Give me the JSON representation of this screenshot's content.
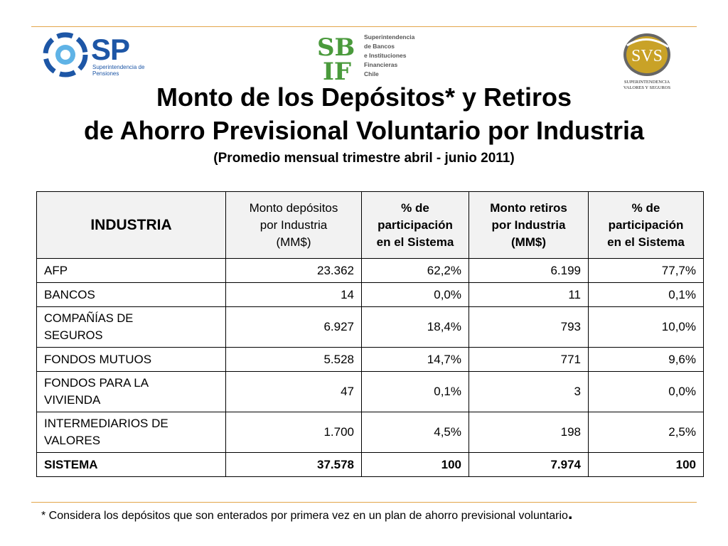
{
  "logos": {
    "sp": {
      "letters": "SP",
      "subtitle_1": "Superintendencia de",
      "subtitle_2": "Pensiones"
    },
    "sbif": {
      "letters_top": "SB",
      "letters_bottom": "IF",
      "lines": [
        "Superintendencia",
        "de Bancos",
        "e Instituciones",
        "Financieras",
        "Chile"
      ]
    },
    "svs": {
      "letters": "SVS",
      "subtitle_1": "SUPERINTENDENCIA",
      "subtitle_2": "VALORES Y SEGUROS"
    }
  },
  "title": {
    "line1": "Monto de los Depósitos* y Retiros",
    "line2": "de Ahorro Previsional Voluntario por Industria",
    "subtitle": "(Promedio mensual trimestre abril - junio 2011)"
  },
  "table": {
    "headers": {
      "industria": "INDUSTRIA",
      "dep_1": "Monto depósitos",
      "dep_2": "por Industria",
      "dep_3": "(MM$)",
      "pdep_1": "% de",
      "pdep_2": "participación",
      "pdep_3": "en el Sistema",
      "ret_1": "Monto retiros",
      "ret_2": "por Industria",
      "ret_3": "(MM$)",
      "pret_1": "% de",
      "pret_2": "participación",
      "pret_3": "en el Sistema"
    },
    "rows": [
      {
        "industria_1": "AFP",
        "industria_2": "",
        "depositos": "23.362",
        "pct_depositos": "62,2%",
        "retiros": "6.199",
        "pct_retiros": "77,7%"
      },
      {
        "industria_1": "BANCOS",
        "industria_2": "",
        "depositos": "14",
        "pct_depositos": "0,0%",
        "retiros": "11",
        "pct_retiros": "0,1%"
      },
      {
        "industria_1": "COMPAÑÍAS DE",
        "industria_2": "SEGUROS",
        "depositos": "6.927",
        "pct_depositos": "18,4%",
        "retiros": "793",
        "pct_retiros": "10,0%"
      },
      {
        "industria_1": "FONDOS MUTUOS",
        "industria_2": "",
        "depositos": "5.528",
        "pct_depositos": "14,7%",
        "retiros": "771",
        "pct_retiros": "9,6%"
      },
      {
        "industria_1": "FONDOS PARA LA",
        "industria_2": "VIVIENDA",
        "depositos": "47",
        "pct_depositos": "0,1%",
        "retiros": "3",
        "pct_retiros": "0,0%"
      },
      {
        "industria_1": "INTERMEDIARIOS DE",
        "industria_2": "VALORES",
        "depositos": "1.700",
        "pct_depositos": "4,5%",
        "retiros": "198",
        "pct_retiros": "2,5%"
      }
    ],
    "total": {
      "industria": "SISTEMA",
      "depositos": "37.578",
      "pct_depositos": "100",
      "retiros": "7.974",
      "pct_retiros": "100"
    }
  },
  "footnote": {
    "text": "* Considera los depósitos que son enterados por primera vez en un plan de ahorro previsional voluntario",
    "end": "."
  },
  "colors": {
    "rule": "#e3a64a",
    "sp_blue": "#1d56a6",
    "sbif_green": "#4a9a3c",
    "svs_gold": "#c9a227",
    "header_bg": "#f2f2f2"
  }
}
